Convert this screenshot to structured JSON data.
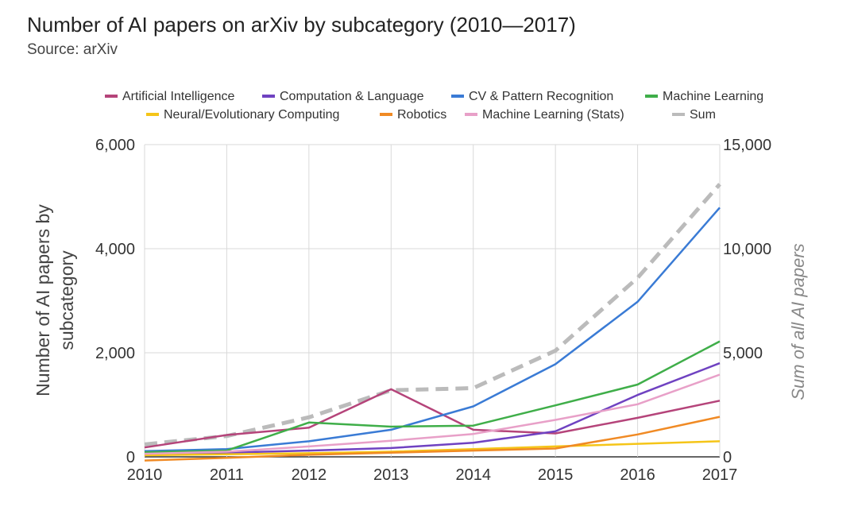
{
  "title": "Number of AI papers on arXiv by subcategory (2010—2017)",
  "subtitle": "Source: arXiv",
  "chart_data": {
    "type": "line",
    "x": [
      "2010",
      "2011",
      "2012",
      "2013",
      "2014",
      "2015",
      "2016",
      "2017"
    ],
    "ylabel": "Number of AI papers by subcategory",
    "y2label": "Sum of all AI papers",
    "ylim": [
      0,
      6000
    ],
    "y2lim": [
      0,
      15000
    ],
    "yticks": [
      "0",
      "2,000",
      "4,000",
      "6,000"
    ],
    "y2ticks": [
      "0",
      "5,000",
      "10,000",
      "15,000"
    ],
    "grid": true,
    "legend_position": "top",
    "series": [
      {
        "name": "Artificial Intelligence",
        "color": "#b5447a",
        "axis": "left",
        "dashed": false,
        "values": [
          180,
          420,
          560,
          1300,
          520,
          450,
          750,
          1080
        ]
      },
      {
        "name": "Computation & Language",
        "color": "#6f42c1",
        "axis": "left",
        "dashed": false,
        "values": [
          60,
          80,
          120,
          170,
          270,
          490,
          1190,
          1800
        ]
      },
      {
        "name": "CV & Pattern Recognition",
        "color": "#3a7bd5",
        "axis": "left",
        "dashed": false,
        "values": [
          110,
          150,
          300,
          520,
          970,
          1780,
          2980,
          4790
        ]
      },
      {
        "name": "Machine Learning",
        "color": "#3fae49",
        "axis": "left",
        "dashed": false,
        "values": [
          90,
          120,
          660,
          580,
          600,
          990,
          1390,
          2220
        ]
      },
      {
        "name": "Neural/Evolutionary Computing",
        "color": "#f5c518",
        "axis": "left",
        "dashed": false,
        "values": [
          30,
          50,
          70,
          100,
          150,
          200,
          250,
          300
        ]
      },
      {
        "name": "Robotics",
        "color": "#f08a24",
        "axis": "left",
        "dashed": false,
        "values": [
          -70,
          -20,
          40,
          80,
          120,
          160,
          430,
          770
        ]
      },
      {
        "name": "Machine Learning (Stats)",
        "color": "#e8a0c8",
        "axis": "left",
        "dashed": false,
        "values": [
          60,
          100,
          200,
          310,
          440,
          710,
          1010,
          1580
        ]
      },
      {
        "name": "Sum",
        "color": "#bbbbbb",
        "axis": "right",
        "dashed": true,
        "values": [
          600,
          1000,
          1900,
          3200,
          3300,
          5100,
          8600,
          13100
        ]
      }
    ]
  }
}
